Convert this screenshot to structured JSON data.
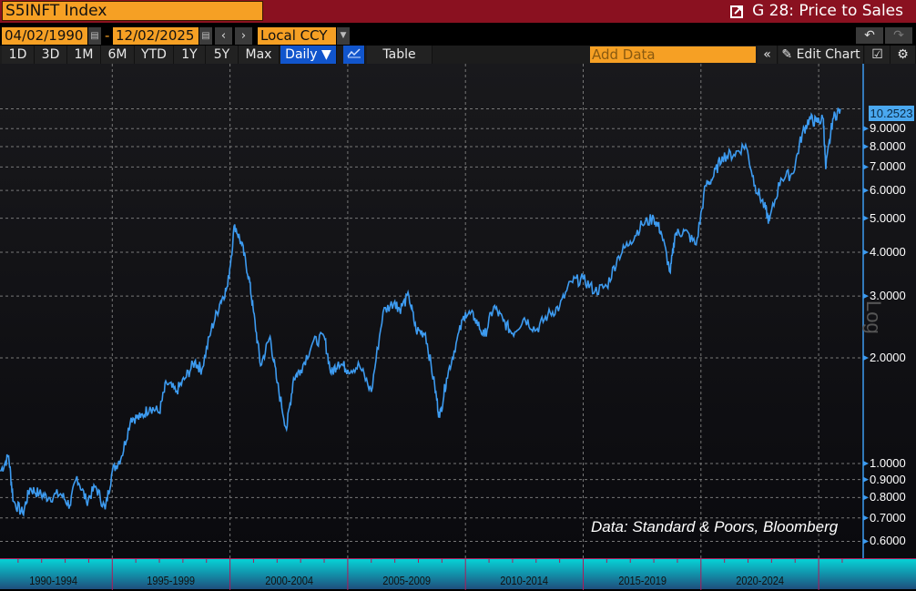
{
  "header": {
    "ticker": "S5INFT Index",
    "chart_title": "G 28: Price to Sales"
  },
  "controls": {
    "start_date": "04/02/1990",
    "date_separator": "-",
    "end_date": "12/02/2025",
    "currency": "Local CCY",
    "undo_icon": "undo-icon",
    "redo_icon": "redo-icon"
  },
  "toolbar": {
    "ranges": [
      "1D",
      "3D",
      "1M",
      "6M",
      "YTD",
      "1Y",
      "5Y",
      "Max"
    ],
    "frequency": "Daily ▼",
    "table_label": "Table",
    "add_data_placeholder": "Add Data",
    "collapse_icon": "«",
    "edit_chart_label": "Edit Chart"
  },
  "colors": {
    "series": "#3d9bf0",
    "title_bar": "#8a1120",
    "input_orange": "#f6a024",
    "active_button": "#1155cc"
  },
  "chart_data": {
    "type": "line",
    "title": "G 28: Price to Sales",
    "series_name": "S5INFT Index",
    "yscale": "log",
    "ylabel": "Log",
    "y_ticks": [
      "0.6000",
      "0.7000",
      "0.8000",
      "0.9000",
      "1.0000",
      "2.0000",
      "3.0000",
      "4.0000",
      "5.0000",
      "6.0000",
      "7.0000",
      "8.0000",
      "9.0000"
    ],
    "last_value": "10.2523",
    "x_tick_labels": [
      "1990-1994",
      "1995-1999",
      "2000-2004",
      "2005-2009",
      "2010-2014",
      "2015-2019",
      "2020-2024"
    ],
    "grid": true,
    "annotation": "Data: Standard & Poors, Bloomberg",
    "x": [
      1990.25,
      1990.6,
      1990.8,
      1991.2,
      1991.5,
      1991.9,
      1992.3,
      1992.8,
      1993.2,
      1993.5,
      1993.9,
      1994.3,
      1994.7,
      1995.0,
      1995.4,
      1995.8,
      1996.2,
      1996.6,
      1997.0,
      1997.3,
      1997.7,
      1998.1,
      1998.5,
      1998.8,
      1999.2,
      1999.6,
      1999.9,
      2000.2,
      2000.5,
      2000.8,
      2001.0,
      2001.3,
      2001.7,
      2002.0,
      2002.4,
      2002.7,
      2003.0,
      2003.5,
      2004.0,
      2004.3,
      2004.6,
      2005.0,
      2005.5,
      2006.0,
      2006.5,
      2007.0,
      2007.2,
      2007.6,
      2007.9,
      2008.3,
      2008.7,
      2008.9,
      2009.2,
      2009.6,
      2010.0,
      2010.4,
      2010.8,
      2011.2,
      2011.6,
      2012.0,
      2012.5,
      2013.0,
      2013.5,
      2014.0,
      2014.5,
      2015.0,
      2015.5,
      2016.0,
      2016.5,
      2017.0,
      2017.5,
      2018.0,
      2018.3,
      2018.7,
      2018.9,
      2019.3,
      2019.8,
      2020.2,
      2020.5,
      2020.9,
      2021.4,
      2021.9,
      2022.3,
      2022.7,
      2022.9,
      2023.4,
      2023.9,
      2024.3,
      2024.6,
      2024.9,
      2025.2,
      2025.3,
      2025.6,
      2025.92
    ],
    "values": [
      0.95,
      1.05,
      0.78,
      0.72,
      0.85,
      0.82,
      0.8,
      0.82,
      0.76,
      0.92,
      0.78,
      0.86,
      0.74,
      0.95,
      1.05,
      1.35,
      1.35,
      1.45,
      1.4,
      1.7,
      1.6,
      1.75,
      1.95,
      1.85,
      2.4,
      2.9,
      3.2,
      4.8,
      4.2,
      3.4,
      2.7,
      1.9,
      2.3,
      1.7,
      1.25,
      1.75,
      1.85,
      2.2,
      2.3,
      1.8,
      1.95,
      1.85,
      1.9,
      1.6,
      2.7,
      2.9,
      2.75,
      3.0,
      2.4,
      2.35,
      1.65,
      1.35,
      1.75,
      2.2,
      2.7,
      2.6,
      2.3,
      2.8,
      2.55,
      2.35,
      2.6,
      2.4,
      2.65,
      2.8,
      3.3,
      3.35,
      3.1,
      3.2,
      3.9,
      4.3,
      4.8,
      5.0,
      4.6,
      3.5,
      4.5,
      4.6,
      4.2,
      6.2,
      6.5,
      7.5,
      7.6,
      8.1,
      6.2,
      5.4,
      4.9,
      6.5,
      6.7,
      8.7,
      9.6,
      9.4,
      9.6,
      6.9,
      9.6,
      10.25
    ]
  }
}
